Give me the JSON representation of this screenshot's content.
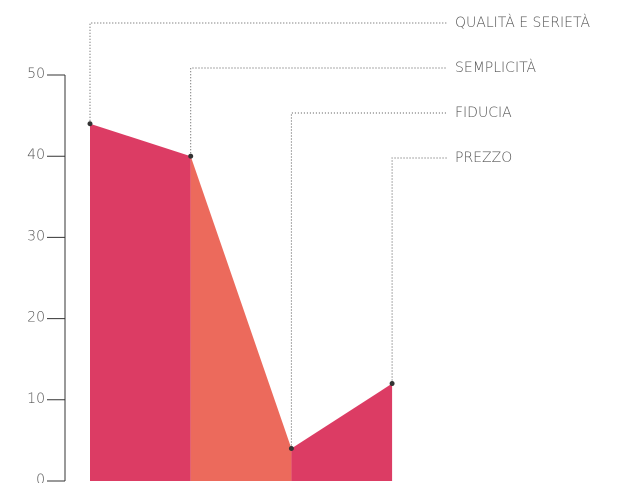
{
  "chart_data": {
    "type": "area",
    "categories": [
      "QUALITÀ E SERIETÀ",
      "SEMPLICITÀ",
      "FIDUCIA",
      "PREZZO"
    ],
    "values": [
      44,
      40,
      4,
      12
    ],
    "segment_colors": [
      "#dc3c64",
      "#ec6a5c",
      "#dc3c64"
    ],
    "point_color": "#333333",
    "ylim": [
      0,
      50
    ],
    "yticks": [
      0,
      10,
      20,
      30,
      40,
      50
    ]
  }
}
